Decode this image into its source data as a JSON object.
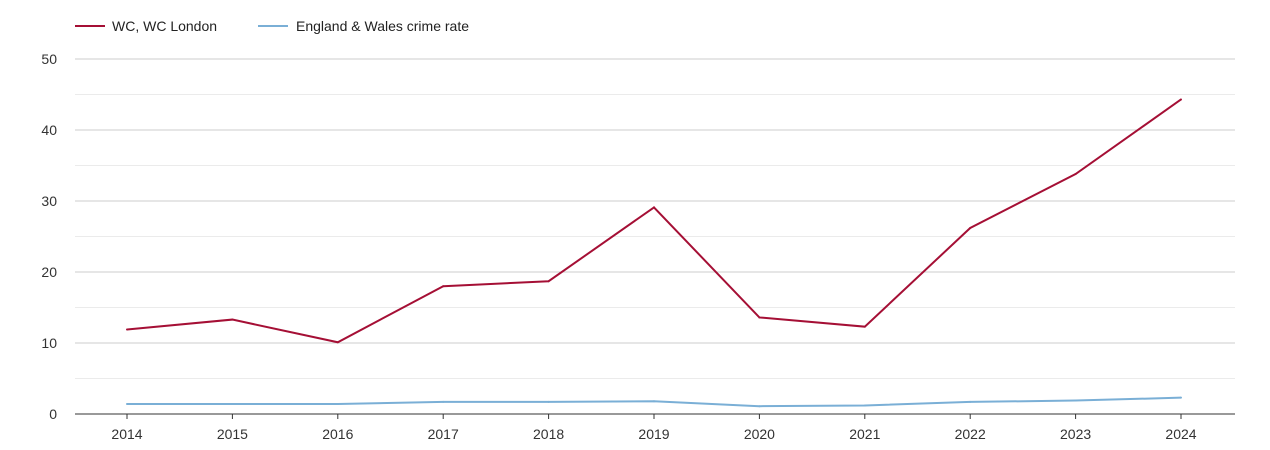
{
  "chart_data": {
    "type": "line",
    "title": "",
    "xlabel": "",
    "ylabel": "",
    "x": [
      "2014",
      "2015",
      "2016",
      "2017",
      "2018",
      "2019",
      "2020",
      "2021",
      "2022",
      "2023",
      "2024"
    ],
    "ylim": [
      0,
      50
    ],
    "yticks": [
      "0",
      "10",
      "20",
      "30",
      "40",
      "50"
    ],
    "grid": true,
    "legend_position": "top-left",
    "series": [
      {
        "name": "WC, WC London",
        "color": "#a50f35",
        "values": [
          11.9,
          13.3,
          10.1,
          18.0,
          18.7,
          29.1,
          13.6,
          12.3,
          26.2,
          33.8,
          44.3
        ]
      },
      {
        "name": "England & Wales crime rate",
        "color": "#7aafd6",
        "values": [
          1.4,
          1.4,
          1.4,
          1.7,
          1.7,
          1.8,
          1.1,
          1.2,
          1.7,
          1.9,
          2.3
        ]
      }
    ]
  }
}
